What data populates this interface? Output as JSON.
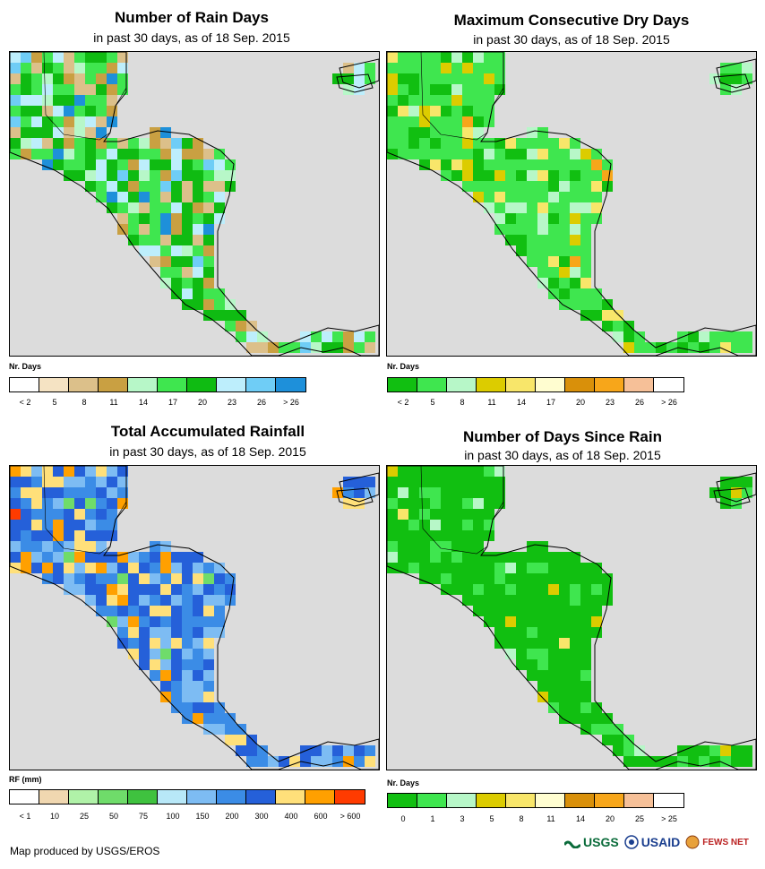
{
  "panels": [
    {
      "title": "Number of Rain Days",
      "subtitle": "in past 30 days, as of 18 Sep. 2015",
      "legend_title": "Nr. Days",
      "legend_colors": [
        "#ffffff",
        "#f5e3c3",
        "#dcc08a",
        "#c9a042",
        "#b7f7c8",
        "#3fe64f",
        "#0fbb12",
        "#bdeefc",
        "#6fcdf6",
        "#1e90da"
      ],
      "legend_ticks": [
        "< 2",
        "5",
        "8",
        "11",
        "14",
        "17",
        "20",
        "23",
        "26",
        "> 26"
      ],
      "palette": [
        "#c9a042",
        "#dcc08a",
        "#3fe64f",
        "#0fbb12",
        "#b7f7c8",
        "#bdeefc",
        "#6fcdf6",
        "#1e90da"
      ],
      "weights": [
        2,
        3,
        5,
        6,
        2,
        3,
        1,
        1
      ]
    },
    {
      "title": "Maximum Consecutive Dry Days",
      "subtitle": "in past 30 days, as of 18 Sep. 2015",
      "legend_title": "Nr. Days",
      "legend_colors": [
        "#11bf11",
        "#3fe64f",
        "#b7f7c8",
        "#dccc00",
        "#f8e66a",
        "#fffdd0",
        "#d9900a",
        "#f7a61a",
        "#f6c098",
        "#ffffff"
      ],
      "legend_ticks": [
        "< 2",
        "5",
        "8",
        "11",
        "14",
        "17",
        "20",
        "23",
        "26",
        "> 26"
      ],
      "palette": [
        "#3fe64f",
        "#11bf11",
        "#b7f7c8",
        "#dccc00",
        "#f8e66a",
        "#f7a61a"
      ],
      "weights": [
        8,
        3,
        2,
        1,
        1,
        0.3
      ]
    },
    {
      "title": "Total Accumulated Rainfall",
      "subtitle": "in past 30 days, as of 18 Sep. 2015",
      "legend_title": "RF (mm)",
      "legend_colors": [
        "#ffffff",
        "#f0d7b0",
        "#b0f2a8",
        "#6fdc6a",
        "#3fc23f",
        "#b8e8f8",
        "#7dbcf3",
        "#3b8ce6",
        "#2560d9",
        "#ffe07a",
        "#ffa000",
        "#ff3b00"
      ],
      "legend_ticks": [
        "< 1",
        "10",
        "25",
        "50",
        "75",
        "100",
        "150",
        "200",
        "300",
        "400",
        "600",
        "> 600"
      ],
      "palette": [
        "#2560d9",
        "#3b8ce6",
        "#7dbcf3",
        "#ffe07a",
        "#ffa000",
        "#ff3b00",
        "#6fdc6a"
      ],
      "weights": [
        6,
        4,
        3,
        2,
        1,
        0.3,
        0.6
      ]
    },
    {
      "title": "Number of Days Since Rain",
      "subtitle": "in past 30 days, as of 18 Sep. 2015",
      "legend_title": "Nr. Days",
      "legend_colors": [
        "#11bf11",
        "#3fe64f",
        "#b7f7c8",
        "#dccc00",
        "#f8e66a",
        "#fffdd0",
        "#d9900a",
        "#f7a61a",
        "#f6c098",
        "#ffffff"
      ],
      "legend_ticks": [
        "0",
        "1",
        "3",
        "5",
        "8",
        "11",
        "14",
        "20",
        "25",
        "> 25"
      ],
      "palette": [
        "#11bf11",
        "#3fe64f",
        "#b7f7c8",
        "#dccc00",
        "#f8e66a"
      ],
      "weights": [
        10,
        2,
        0.6,
        0.3,
        0.2
      ]
    }
  ],
  "footer": "Map produced by USGS/EROS",
  "logos": [
    "USGS",
    "USAID",
    "FEWS NET"
  ],
  "ocean_color": "#dcdcdc"
}
